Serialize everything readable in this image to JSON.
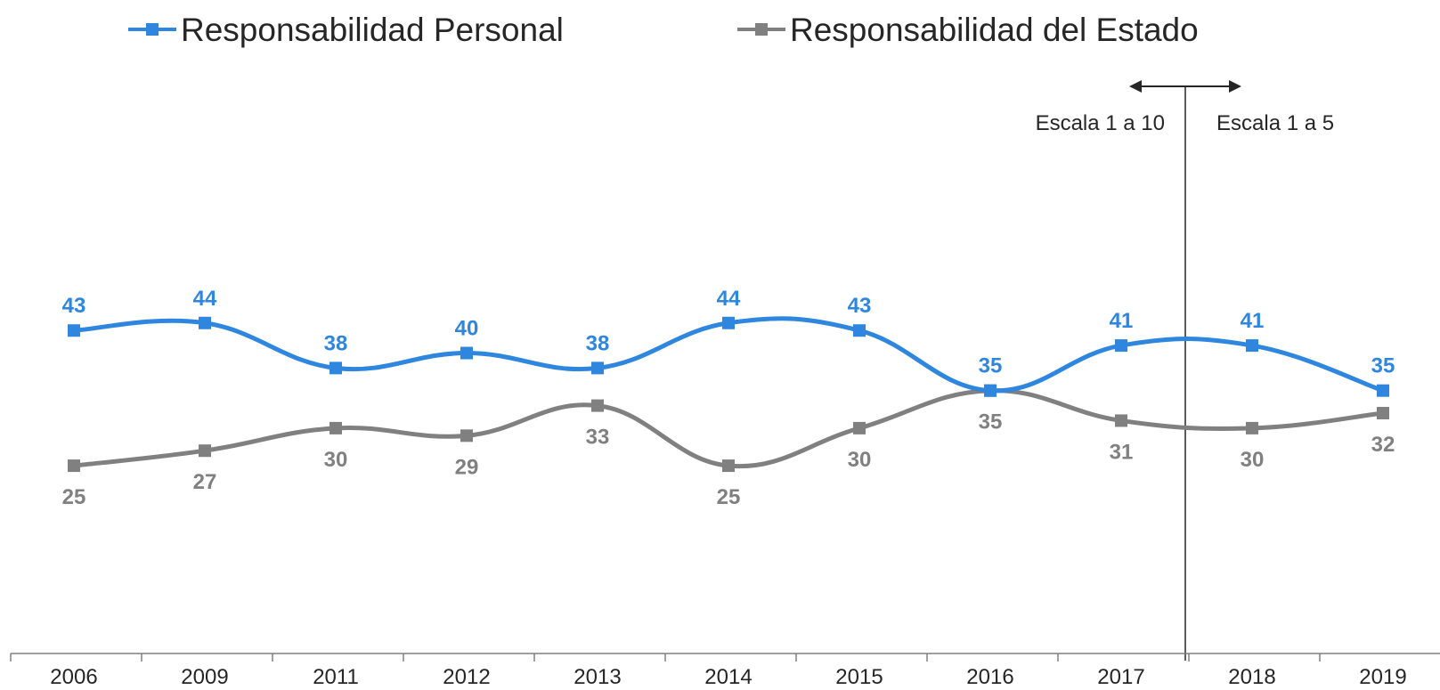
{
  "chart_data": {
    "type": "line",
    "title": "",
    "xlabel": "",
    "ylabel": "",
    "categories": [
      "2006",
      "2009",
      "2011",
      "2012",
      "2013",
      "2014",
      "2015",
      "2016",
      "2017",
      "2018",
      "2019"
    ],
    "series": [
      {
        "name": "Responsabilidad Personal",
        "color": "#2E86DE",
        "values": [
          43,
          44,
          38,
          40,
          38,
          44,
          43,
          35,
          41,
          41,
          35
        ],
        "labels": [
          "43",
          "44",
          "38",
          "40",
          "38",
          "44",
          "43",
          "35",
          "41",
          "41",
          "35"
        ],
        "label_position": "above"
      },
      {
        "name": "Responsabilidad del Estado",
        "color": "#808080",
        "values": [
          25,
          27,
          30,
          29,
          33,
          25,
          30,
          35,
          31,
          30,
          32
        ],
        "labels": [
          "25",
          "27",
          "30",
          "29",
          "33",
          "25",
          "30",
          "35",
          "31",
          "30",
          "32"
        ],
        "label_position": "below"
      }
    ],
    "ylim": [
      0,
      87
    ],
    "y_axis_visible": false,
    "grid": false,
    "legend_position": "top",
    "smooth": true,
    "marker": "square",
    "annotation": {
      "divider_between": [
        "2017",
        "2018"
      ],
      "left_text": "Escala 1 a 10",
      "right_text": "Escala 1 a 5",
      "arrow": "double-headed"
    }
  }
}
